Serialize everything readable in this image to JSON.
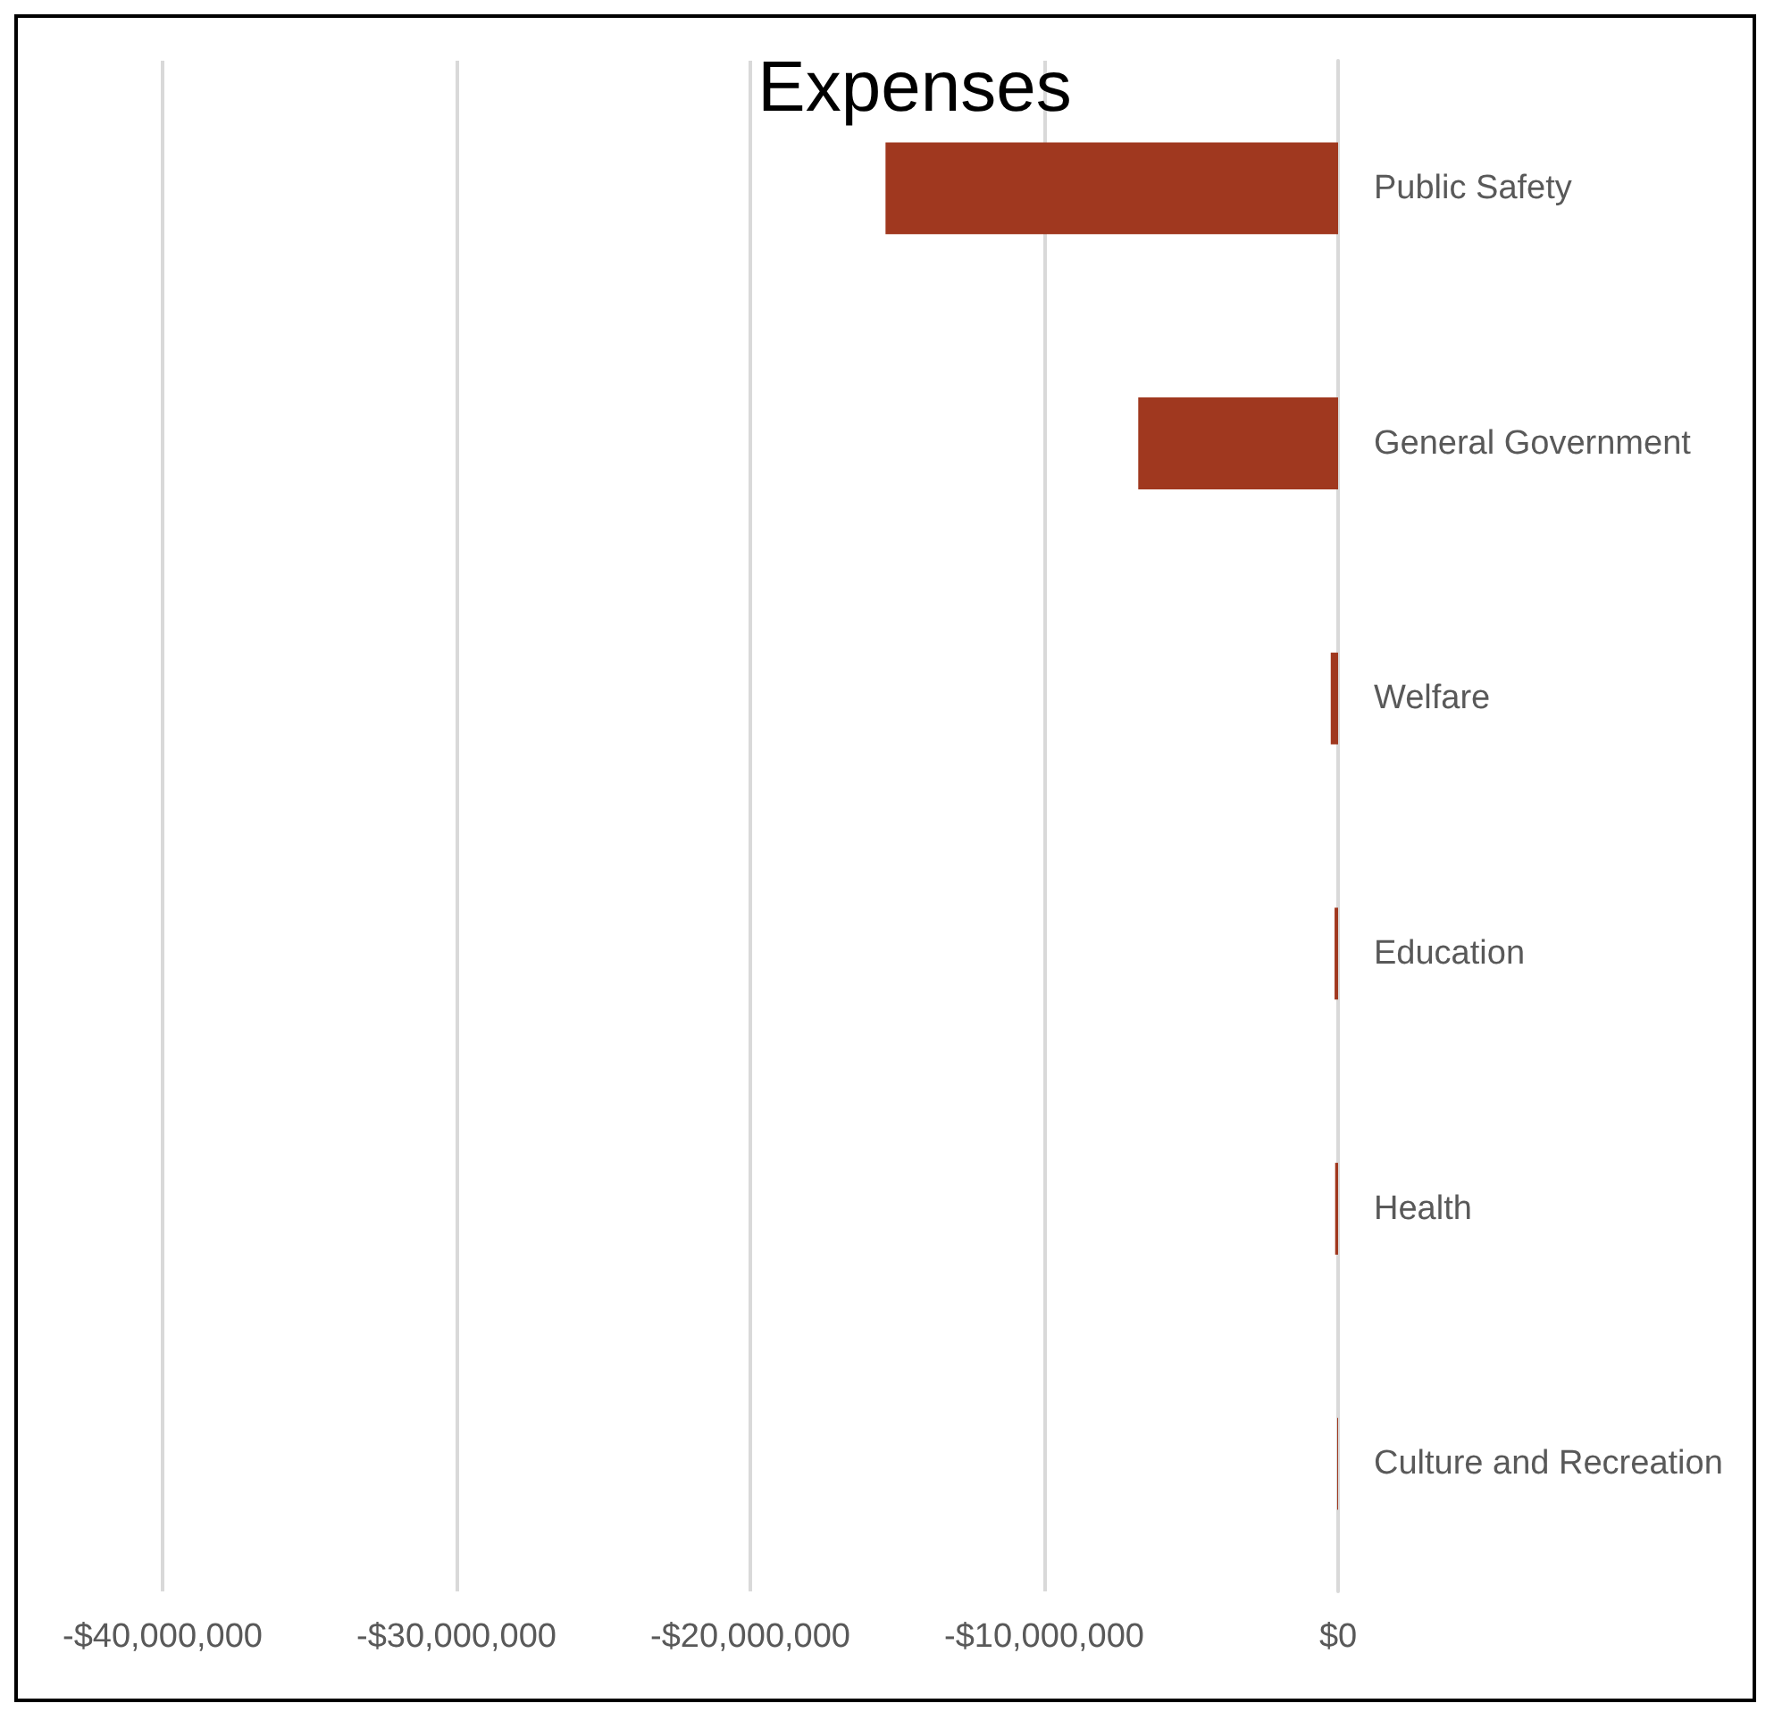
{
  "chart_data": {
    "type": "bar",
    "title": "Expenses",
    "orientation": "horizontal",
    "categories": [
      "Public Safety",
      "General Government",
      "Welfare",
      "Education",
      "Health",
      "Culture and Recreation"
    ],
    "values": [
      -15400000,
      -6800000,
      -250000,
      -120000,
      -100000,
      -30000
    ],
    "color": "#a0381f",
    "xlim": [
      -40000000,
      0
    ],
    "xticks": [
      {
        "value": -40000000,
        "label": "-$40,000,000"
      },
      {
        "value": -30000000,
        "label": "-$30,000,000"
      },
      {
        "value": -20000000,
        "label": "-$20,000,000"
      },
      {
        "value": -10000000,
        "label": "-$10,000,000"
      },
      {
        "value": 0,
        "label": "$0"
      }
    ],
    "grid": "x"
  }
}
